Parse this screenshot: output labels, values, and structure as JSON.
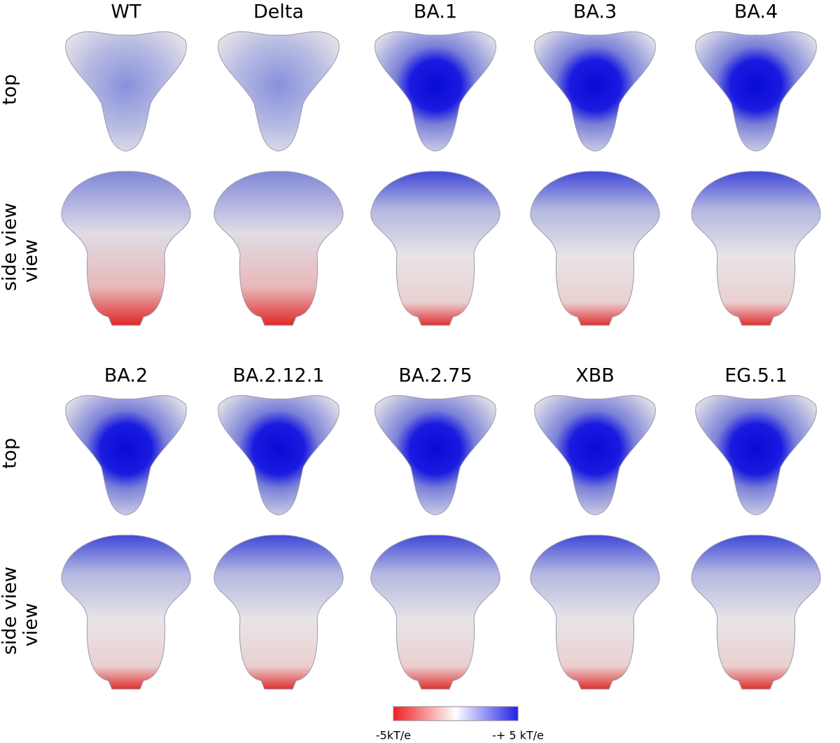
{
  "panels": [
    {
      "columns": [
        "WT",
        "Delta",
        "BA.1",
        "BA.3",
        "BA.4"
      ],
      "rows": [
        {
          "label": [
            "top"
          ]
        },
        {
          "label": [
            "side view",
            "view"
          ]
        }
      ]
    },
    {
      "columns": [
        "BA.2",
        "BA.2.12.1",
        "BA.2.75",
        "XBB",
        "EG.5.1"
      ],
      "rows": [
        {
          "label": [
            "top"
          ]
        },
        {
          "label": [
            "side view",
            "view"
          ]
        }
      ]
    }
  ],
  "colorbar": {
    "min_label": "-5kT/e",
    "max_label": "-+ 5 kT/e"
  }
}
